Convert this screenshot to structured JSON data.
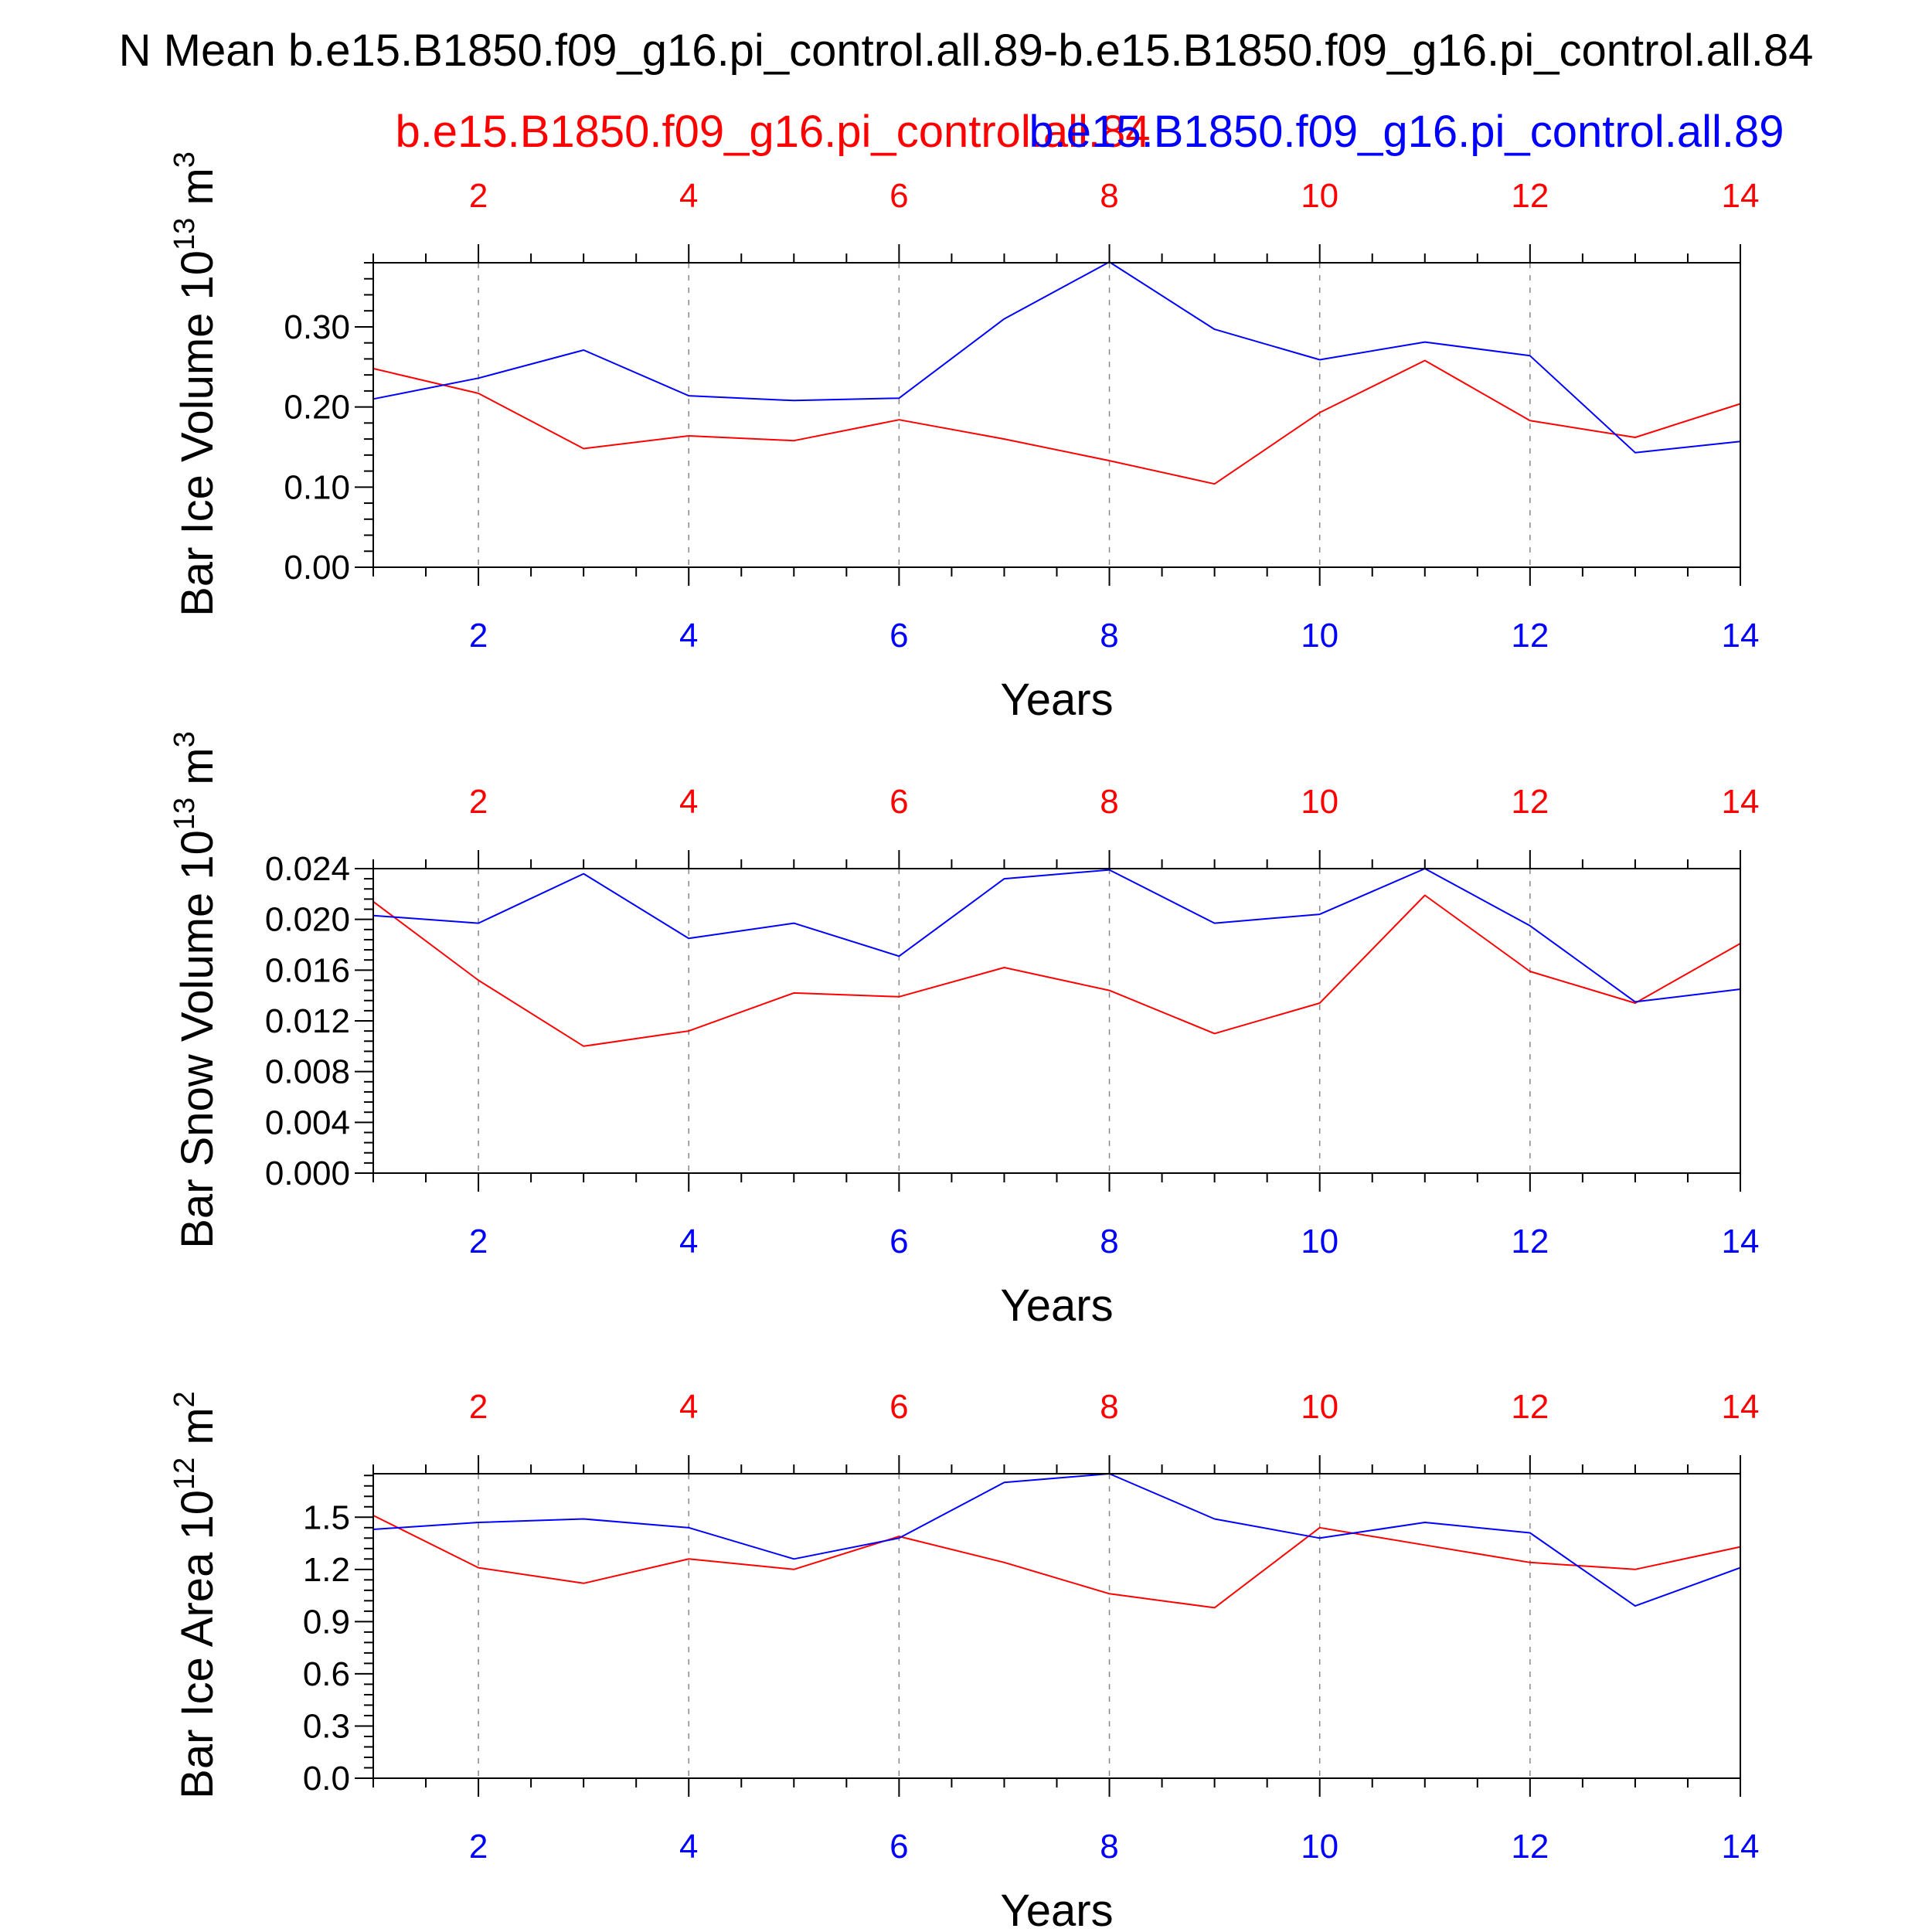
{
  "title": "N Mean b.e15.B1850.f09_g16.pi_control.all.89-b.e15.B1850.f09_g16.pi_control.all.84",
  "subtitle_red": "b.e15.B1850.f09_g16.pi_control.all.84",
  "subtitle_blue": "b.e15.B1850.f09_g16.pi_control.all.89",
  "colors": {
    "red": "#ff0000",
    "blue": "#0000ff",
    "axis": "#000000",
    "grid": "#888888"
  },
  "chart_data": [
    {
      "type": "line",
      "ylabel_main": "Bar Ice Volume 10",
      "ylabel_exp": "13",
      "ylabel_unit": " m",
      "ylabel_unit_exp": "3",
      "xlabel": "Years",
      "xlim": [
        1,
        14
      ],
      "ylim": [
        0,
        0.38
      ],
      "yticks": [
        "0.00",
        "0.10",
        "0.20",
        "0.30"
      ],
      "yticks_values": [
        0,
        0.1,
        0.2,
        0.3
      ],
      "xticks": [
        2,
        4,
        6,
        8,
        10,
        12,
        14
      ],
      "grid": "vertical dashed at major x ticks",
      "x": [
        1,
        2,
        3,
        4,
        5,
        6,
        7,
        8,
        9,
        10,
        11,
        12,
        13,
        14
      ],
      "series": [
        {
          "name": "b.e15.B1850.f09_g16.pi_control.all.84",
          "color": "red",
          "values": [
            0.248,
            0.217,
            0.148,
            0.164,
            0.158,
            0.184,
            0.16,
            0.133,
            0.104,
            0.193,
            0.258,
            0.183,
            0.162,
            0.204
          ]
        },
        {
          "name": "b.e15.B1850.f09_g16.pi_control.all.89",
          "color": "blue",
          "values": [
            0.21,
            0.236,
            0.271,
            0.214,
            0.208,
            0.211,
            0.31,
            0.381,
            0.297,
            0.259,
            0.281,
            0.264,
            0.143,
            0.157
          ]
        }
      ]
    },
    {
      "type": "line",
      "ylabel_main": "Bar Snow Volume 10",
      "ylabel_exp": "13",
      "ylabel_unit": " m",
      "ylabel_unit_exp": "3",
      "xlabel": "Years",
      "xlim": [
        1,
        14
      ],
      "ylim": [
        0,
        0.024
      ],
      "yticks": [
        "0.000",
        "0.004",
        "0.008",
        "0.012",
        "0.016",
        "0.020",
        "0.024"
      ],
      "yticks_values": [
        0,
        0.004,
        0.008,
        0.012,
        0.016,
        0.02,
        0.024
      ],
      "xticks": [
        2,
        4,
        6,
        8,
        10,
        12,
        14
      ],
      "grid": "vertical dashed at major x ticks",
      "x": [
        1,
        2,
        3,
        4,
        5,
        6,
        7,
        8,
        9,
        10,
        11,
        12,
        13,
        14
      ],
      "series": [
        {
          "name": "b.e15.B1850.f09_g16.pi_control.all.84",
          "color": "red",
          "values": [
            0.0214,
            0.0152,
            0.01,
            0.0112,
            0.0142,
            0.0139,
            0.0162,
            0.0144,
            0.011,
            0.0134,
            0.0219,
            0.0159,
            0.0134,
            0.0181
          ]
        },
        {
          "name": "b.e15.B1850.f09_g16.pi_control.all.89",
          "color": "blue",
          "values": [
            0.0203,
            0.0197,
            0.0236,
            0.0185,
            0.0197,
            0.0171,
            0.0232,
            0.0239,
            0.0197,
            0.0204,
            0.024,
            0.0195,
            0.0135,
            0.0145
          ]
        }
      ]
    },
    {
      "type": "line",
      "ylabel_main": "Bar Ice Area 10",
      "ylabel_exp": "12",
      "ylabel_unit": " m",
      "ylabel_unit_exp": "2",
      "xlabel": "Years",
      "xlim": [
        1,
        14
      ],
      "ylim": [
        0,
        1.75
      ],
      "yticks": [
        "0.0",
        "0.3",
        "0.6",
        "0.9",
        "1.2",
        "1.5"
      ],
      "yticks_values": [
        0,
        0.3,
        0.6,
        0.9,
        1.2,
        1.5
      ],
      "xticks": [
        2,
        4,
        6,
        8,
        10,
        12,
        14
      ],
      "grid": "vertical dashed at major x ticks",
      "x": [
        1,
        2,
        3,
        4,
        5,
        6,
        7,
        8,
        9,
        10,
        11,
        12,
        13,
        14
      ],
      "series": [
        {
          "name": "b.e15.B1850.f09_g16.pi_control.all.84",
          "color": "red",
          "values": [
            1.51,
            1.21,
            1.12,
            1.26,
            1.2,
            1.39,
            1.24,
            1.06,
            0.98,
            1.44,
            1.34,
            1.24,
            1.2,
            1.33
          ]
        },
        {
          "name": "b.e15.B1850.f09_g16.pi_control.all.89",
          "color": "blue",
          "values": [
            1.43,
            1.47,
            1.49,
            1.44,
            1.26,
            1.38,
            1.7,
            1.75,
            1.49,
            1.38,
            1.47,
            1.41,
            0.99,
            1.21
          ]
        }
      ]
    }
  ]
}
